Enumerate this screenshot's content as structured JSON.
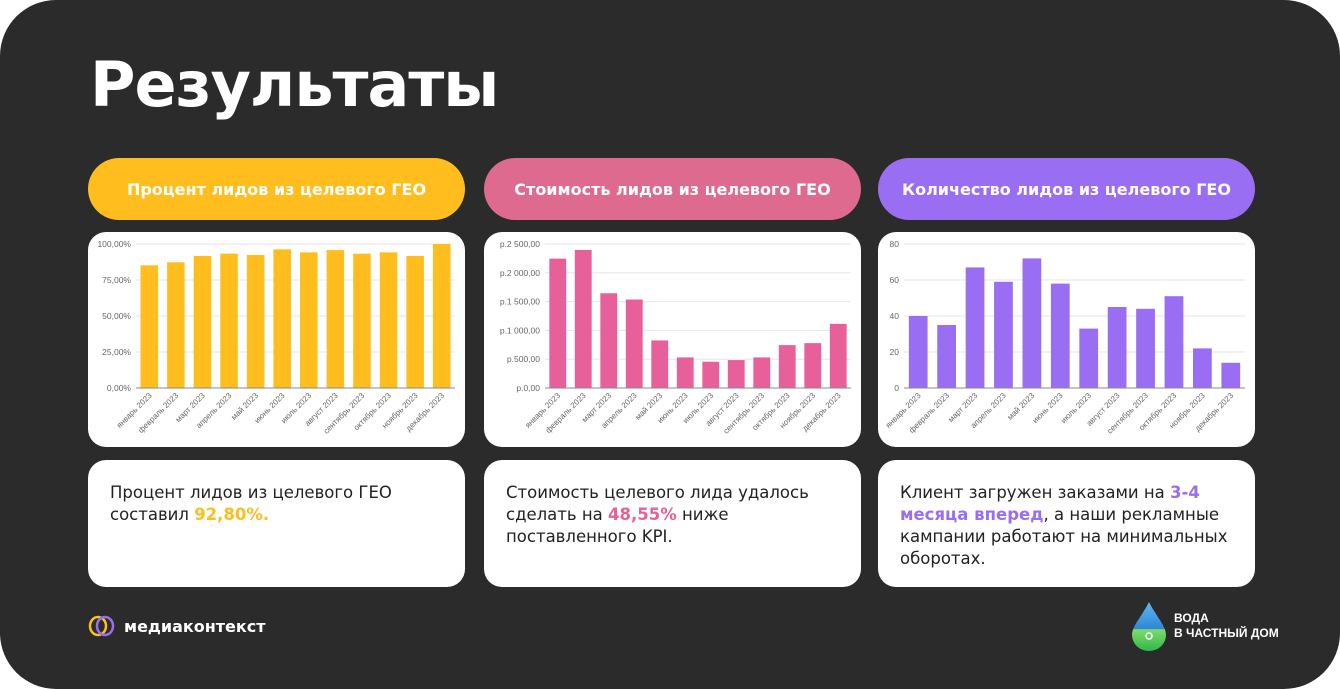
{
  "title": "Результаты",
  "colors": {
    "yellow": "#FFBE1E",
    "pink": "#E8609A",
    "purple": "#9A6EF2",
    "pill_pink": "#DE6A8F"
  },
  "columns": [
    {
      "pill": "Процент лидов из целевого ГЕО",
      "text_before": "Процент лидов из целевого ГЕО составил ",
      "highlight": "92,80%.",
      "text_after": ""
    },
    {
      "pill": "Стоимость лидов из целевого ГЕО",
      "text_before": "Стоимость целевого лида удалось сделать на ",
      "highlight": "48,55%",
      "text_after": " ниже поставленного KPI."
    },
    {
      "pill": "Количество лидов из целевого ГЕО",
      "text_before": "Клиент загружен заказами на ",
      "highlight": "3-4 месяца вперед",
      "text_after": ", а наши рекламные кампании работают на минимальных оборотах."
    }
  ],
  "chart_data": [
    {
      "type": "bar",
      "title": "",
      "categories": [
        "январь 2023",
        "февраль 2023",
        "март 2023",
        "апрель 2023",
        "май 2023",
        "июнь 2023",
        "июль 2023",
        "август 2023",
        "сентябрь 2023",
        "октябрь 2023",
        "ноябрь 2023",
        "декабрь 2023"
      ],
      "values": [
        85.2,
        87.3,
        91.7,
        93.3,
        92.4,
        96.3,
        94.2,
        95.8,
        93.3,
        94.2,
        91.7,
        100
      ],
      "ylim": [
        0,
        100
      ],
      "yticks": [
        0,
        25,
        50,
        75,
        100
      ],
      "ytick_labels": [
        "0,00%",
        "25,00%",
        "50,00%",
        "75,00%",
        "100,00%"
      ],
      "grid": true,
      "color": "#FFBE1E"
    },
    {
      "type": "bar",
      "title": "",
      "categories": [
        "январь 2023",
        "февраль 2023",
        "март 2023",
        "апрель 2023",
        "май 2023",
        "июнь 2023",
        "июль 2023",
        "август 2023",
        "сентябрь 2023",
        "октябрь 2023",
        "ноябрь 2023",
        "декабрь 2023"
      ],
      "values": [
        2246,
        2396,
        1645,
        1536,
        826,
        531,
        456,
        485,
        531,
        745,
        779,
        1114
      ],
      "ylim": [
        0,
        2500
      ],
      "yticks": [
        0,
        500,
        1000,
        1500,
        2000,
        2500
      ],
      "ytick_labels": [
        "р.0,00",
        "р.500,00",
        "р.1 000,00",
        "р.1 500,00",
        "р.2 000,00",
        "р.2 500,00"
      ],
      "grid": true,
      "color": "#E8609A"
    },
    {
      "type": "bar",
      "title": "",
      "categories": [
        "январь 2023",
        "февраль 2023",
        "март 2023",
        "апрель 2023",
        "май 2023",
        "июнь 2023",
        "июль 2023",
        "август 2023",
        "сентябрь 2023",
        "октябрь 2023",
        "ноябрь 2023",
        "декабрь 2023"
      ],
      "values": [
        40,
        35,
        67,
        59,
        72,
        58,
        33,
        45,
        44,
        51,
        22,
        14
      ],
      "ylim": [
        0,
        80
      ],
      "yticks": [
        0,
        20,
        40,
        60,
        80
      ],
      "ytick_labels": [
        "0",
        "20",
        "40",
        "60",
        "80"
      ],
      "grid": true,
      "color": "#9A6EF2"
    }
  ],
  "footer": {
    "left_logo": "медиаконтекст",
    "right_logo_line1": "ВОДА",
    "right_logo_line2": "В ЧАСТНЫЙ ДОМ"
  }
}
